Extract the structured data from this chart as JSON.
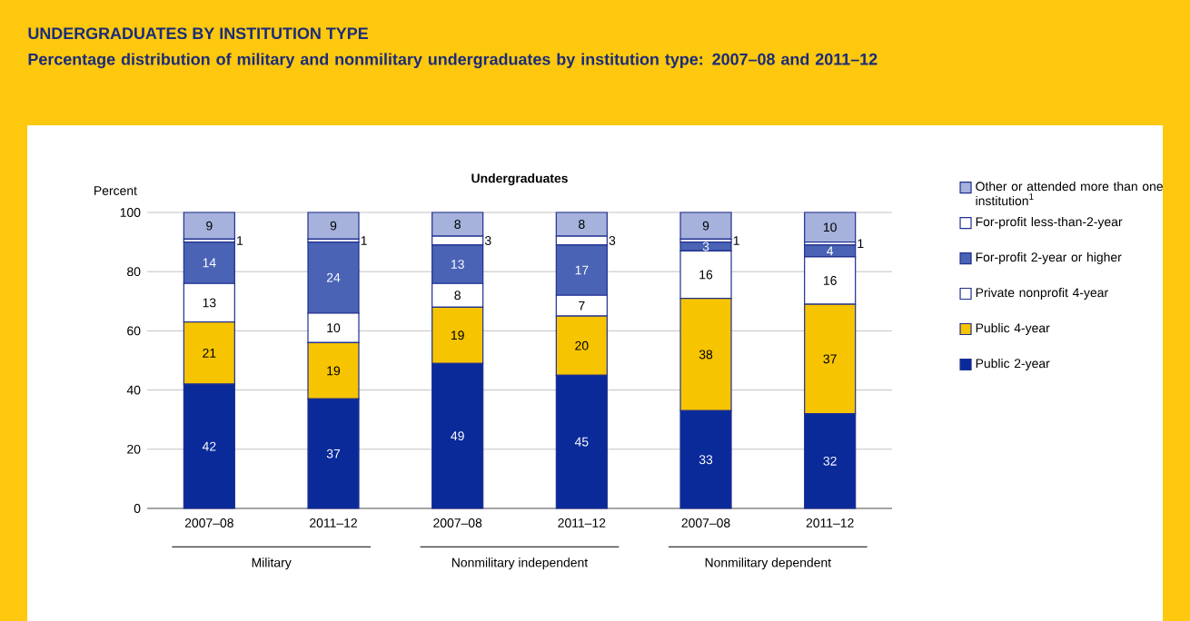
{
  "chart_data": {
    "type": "bar",
    "stacked": true,
    "title": "UNDERGRADUATES BY INSTITUTION TYPE",
    "subtitle": "Percentage distribution of military and nonmilitary undergraduates by institution type: 2007–08 and 2011–12",
    "ylabel": "Percent",
    "categories": [
      "2007–08",
      "2011–12",
      "2007–08",
      "2011–12",
      "2007–08",
      "2011–12"
    ],
    "annotations": [
      "Undergraduates",
      "Military",
      "Nonmilitary independent",
      "Nonmilitary dependent"
    ],
    "series": [
      {
        "name": "Public 2-year",
        "color": "#0a2a9a",
        "values": [
          42,
          37,
          49,
          45,
          33,
          32
        ]
      },
      {
        "name": "Public 4-year",
        "color": "#f6c400",
        "values": [
          21,
          19,
          19,
          20,
          38,
          37
        ]
      },
      {
        "name": "Private nonprofit 4-year",
        "color": "#ffffff",
        "values": [
          13,
          10,
          8,
          7,
          16,
          16
        ]
      },
      {
        "name": "For-profit 2-year or higher",
        "color": "#4a63b5",
        "values": [
          14,
          24,
          13,
          17,
          3,
          4
        ]
      },
      {
        "name": "For-profit less-than-2-year",
        "color": "#ffffff",
        "values": [
          1,
          1,
          3,
          3,
          1,
          1
        ]
      },
      {
        "name": "Other or attended more than one institution$^{1}$",
        "color": "#a6b2dc",
        "values": [
          9,
          9,
          8,
          8,
          9,
          10
        ]
      }
    ],
    "ylim": [
      0,
      100
    ],
    "yticks": [
      0,
      20,
      40,
      60,
      80,
      100
    ],
    "grid": "y",
    "legend": "right",
    "data_labels": true
  }
}
